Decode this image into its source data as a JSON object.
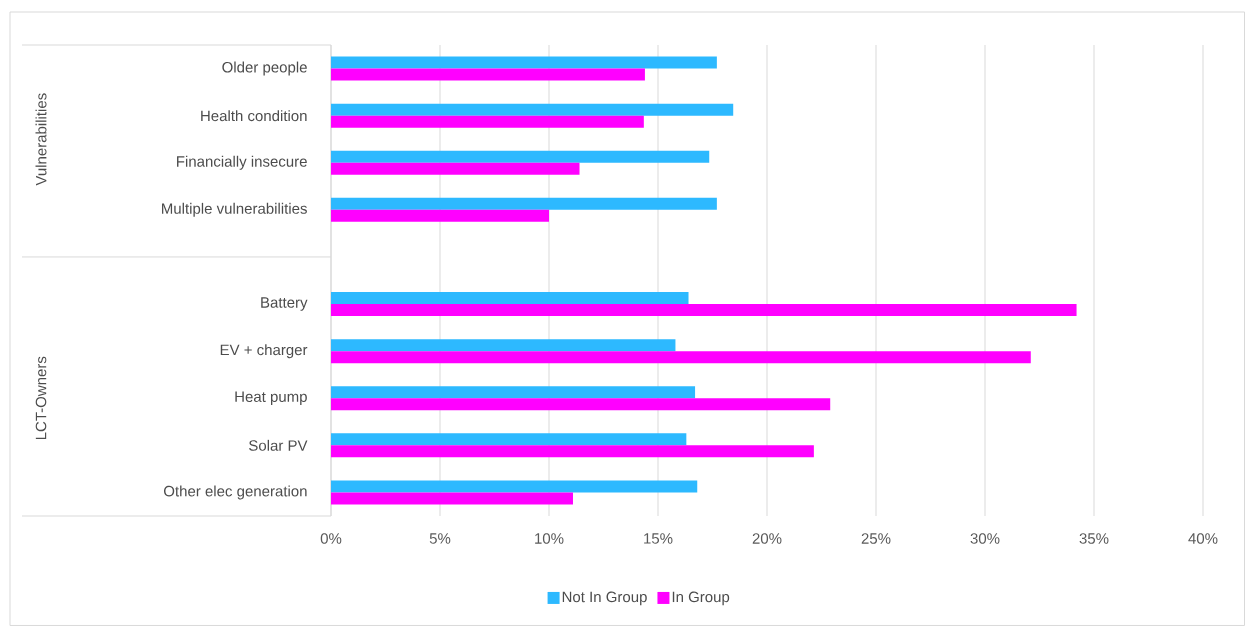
{
  "chart_data": {
    "type": "bar",
    "orientation": "horizontal",
    "categories": [
      "Older people",
      "Health condition",
      "Financially insecure",
      "Multiple vulnerabilities",
      null,
      "Battery",
      "EV + charger",
      "Heat pump",
      "Solar PV",
      "Other elec generation"
    ],
    "series": [
      {
        "name": "Not In Group",
        "color": "#2db9ff",
        "values": [
          17.7,
          18.45,
          17.35,
          17.7,
          null,
          16.4,
          15.8,
          16.7,
          16.3,
          16.8
        ]
      },
      {
        "name": "In Group",
        "color": "#ff00ff",
        "values": [
          14.4,
          14.35,
          11.4,
          10.0,
          null,
          34.2,
          32.1,
          22.9,
          22.15,
          11.1
        ]
      }
    ],
    "xlim": [
      0,
      40
    ],
    "xticks": [
      {
        "value": 0,
        "label": "0%"
      },
      {
        "value": 5,
        "label": "5%"
      },
      {
        "value": 10,
        "label": "10%"
      },
      {
        "value": 15,
        "label": "15%"
      },
      {
        "value": 20,
        "label": "20%"
      },
      {
        "value": 25,
        "label": "25%"
      },
      {
        "value": 30,
        "label": "30%"
      },
      {
        "value": 35,
        "label": "35%"
      },
      {
        "value": 40,
        "label": "40%"
      }
    ],
    "annotations": [
      "Vulnerabilities",
      "LCT-Owners"
    ],
    "grid": "x",
    "legend": "bottom"
  }
}
